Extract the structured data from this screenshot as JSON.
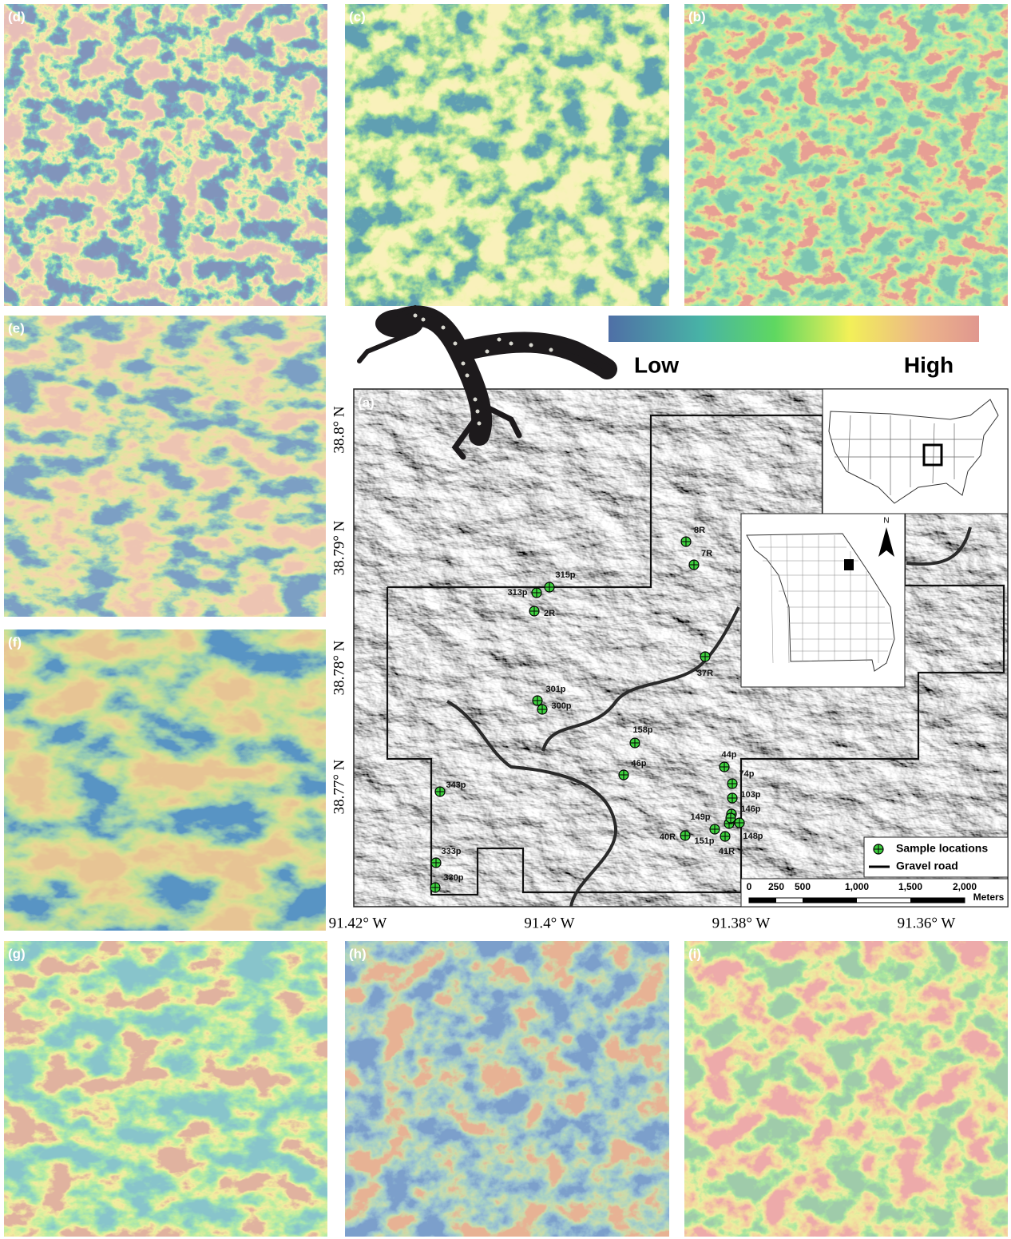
{
  "panel_labels": [
    "(d)",
    "(c)",
    "(b)",
    "(e)",
    "(f)",
    "(g)",
    "(h)",
    "(i)",
    "(a)"
  ],
  "colorbar": {
    "low": "Low",
    "high": "High"
  },
  "map": {
    "latitudes": [
      "38.8° N",
      "38.79° N",
      "38.78° N",
      "38.77° N"
    ],
    "longitudes": [
      "91.42° W",
      "91.4° W",
      "91.38° W",
      "91.36° W"
    ],
    "samples": [
      "8R",
      "7R",
      "315p",
      "313p",
      "2R",
      "37R",
      "301p",
      "300p",
      "158p",
      "44p",
      "46p",
      "74p",
      "343p",
      "103p",
      "146p",
      "149p",
      "40R",
      "151p",
      "148p",
      "41R",
      "333p",
      "330p"
    ],
    "legend": {
      "samples": "Sample locations",
      "road": "Gravel road"
    },
    "scale_bar": {
      "ticks": [
        "0",
        "250",
        "500",
        "1,000",
        "1,500",
        "2,000"
      ],
      "unit": "Meters"
    },
    "north": "N"
  }
}
